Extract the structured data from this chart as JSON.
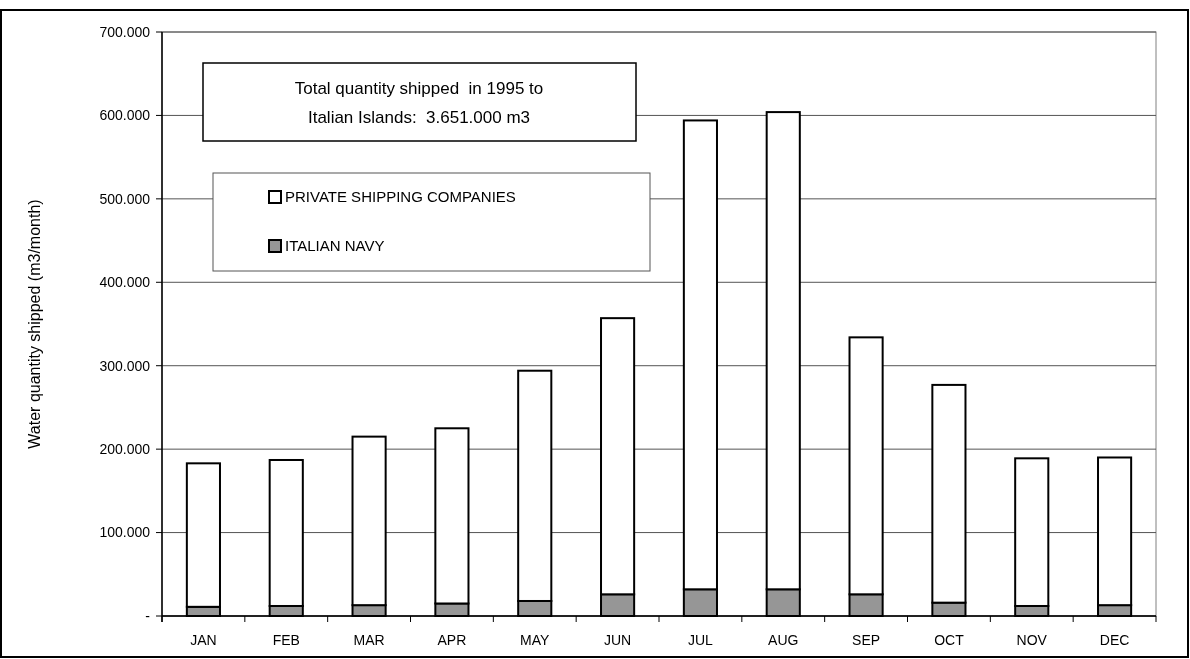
{
  "chart_data": {
    "type": "bar",
    "stacked": true,
    "ylabel": "Water quantity shipped (m3/month)",
    "categories": [
      "JAN",
      "FEB",
      "MAR",
      "APR",
      "MAY",
      "JUN",
      "JUL",
      "AUG",
      "SEP",
      "OCT",
      "NOV",
      "DEC"
    ],
    "series": [
      {
        "name": "ITALIAN NAVY",
        "color": "#969696",
        "values": [
          11000,
          12000,
          13000,
          15000,
          18000,
          26000,
          32000,
          32000,
          26000,
          16000,
          12000,
          13000
        ]
      },
      {
        "name": "PRIVATE SHIPPING COMPANIES",
        "color": "#ffffff",
        "values": [
          172000,
          175000,
          202000,
          210000,
          276000,
          331000,
          562000,
          572000,
          308000,
          261000,
          177000,
          177000
        ]
      }
    ],
    "ylim": [
      0,
      700000
    ],
    "yticks": [
      {
        "value": 0,
        "label": "-"
      },
      {
        "value": 100000,
        "label": "100.000"
      },
      {
        "value": 200000,
        "label": "200.000"
      },
      {
        "value": 300000,
        "label": "300.000"
      },
      {
        "value": 400000,
        "label": "400.000"
      },
      {
        "value": 500000,
        "label": "500.000"
      },
      {
        "value": 600000,
        "label": "600.000"
      },
      {
        "value": 700000,
        "label": "700.000"
      }
    ],
    "grid": "y",
    "legend": "top left",
    "annotations": [
      "Total quantity shipped  in 1995 to\nItalian Islands:  3.651.000 m3"
    ]
  }
}
